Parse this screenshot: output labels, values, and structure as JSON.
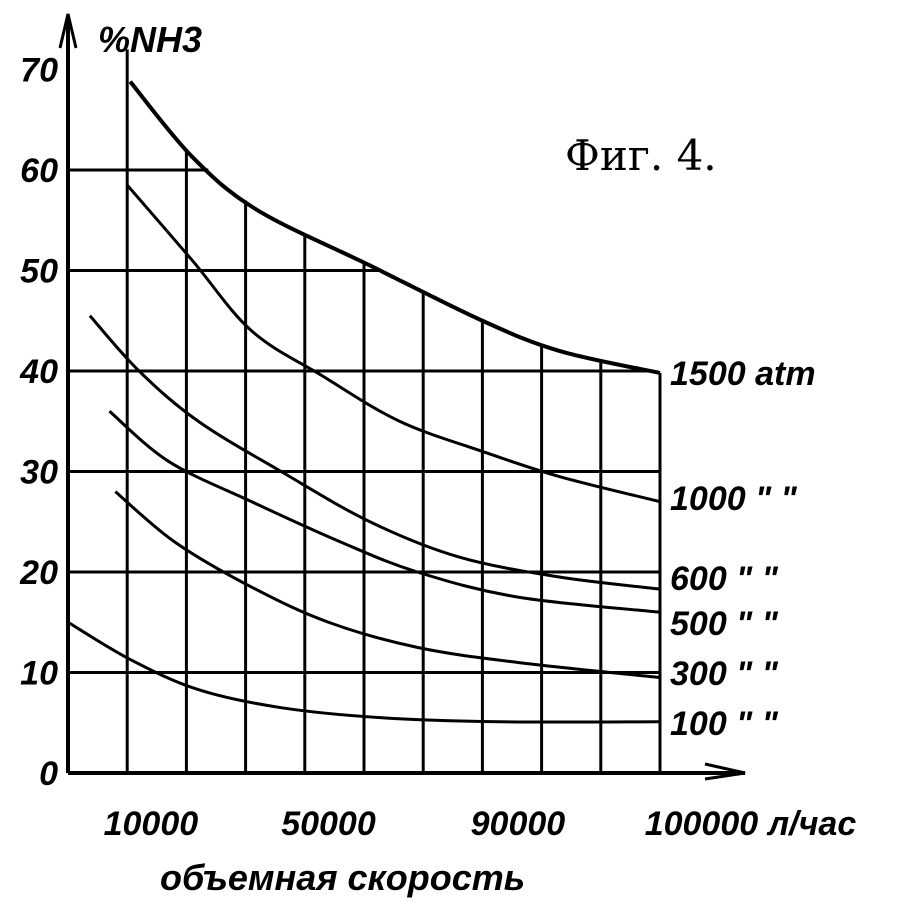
{
  "chart_data": {
    "type": "line",
    "title": "Фиг. 4.",
    "ylabel": "%NH3",
    "xlabel": "объемная скорость",
    "x_unit": "л/час",
    "ylim": [
      0,
      70
    ],
    "xlim_grid_units": [
      0,
      10
    ],
    "grid": true,
    "yticks": [
      "0",
      "10",
      "20",
      "30",
      "40",
      "50",
      "60",
      "70"
    ],
    "xticks": [
      {
        "label": "10000",
        "pos": 1.4
      },
      {
        "label": "50000",
        "pos": 4.4
      },
      {
        "label": "90000",
        "pos": 7.6
      },
      {
        "label": "100000",
        "pos": 10.7
      }
    ],
    "series": [
      {
        "name": "1500",
        "label": "1500 atm",
        "x": [
          1.05,
          2.1,
          3.2,
          5.1,
          7,
          8.3,
          10
        ],
        "y": [
          68.8,
          61.3,
          56,
          50.5,
          45,
          42,
          39.8
        ]
      },
      {
        "name": "1000",
        "label": "1000 \" \"",
        "x": [
          1,
          2.1,
          3.1,
          4.3,
          5.6,
          7,
          8.3,
          10
        ],
        "y": [
          58.5,
          51,
          44,
          39.5,
          35,
          32,
          29.5,
          27
        ]
      },
      {
        "name": "600",
        "label": "600 \" \"",
        "x": [
          0.37,
          1.2,
          2.2,
          3.6,
          5.1,
          6.6,
          8.3,
          10
        ],
        "y": [
          45.5,
          40,
          35,
          30,
          25,
          21.5,
          19.5,
          18.3
        ]
      },
      {
        "name": "500",
        "label": "500 \" \"",
        "x": [
          0.7,
          1.7,
          3.1,
          4.6,
          5.9,
          7.6,
          10
        ],
        "y": [
          36,
          31,
          27,
          23,
          20,
          17.5,
          16
        ]
      },
      {
        "name": "300",
        "label": "300 \" \"",
        "x": [
          0.8,
          1.8,
          3.1,
          4.4,
          5.9,
          7.6,
          10
        ],
        "y": [
          28,
          23,
          18.5,
          15,
          12.5,
          11,
          9.5
        ]
      },
      {
        "name": "100",
        "label": "100 \" \"",
        "x": [
          0,
          1.05,
          2.2,
          3.6,
          5.3,
          7.3,
          10
        ],
        "y": [
          15,
          11.3,
          8.3,
          6.5,
          5.5,
          5.1,
          5.1
        ]
      }
    ]
  }
}
